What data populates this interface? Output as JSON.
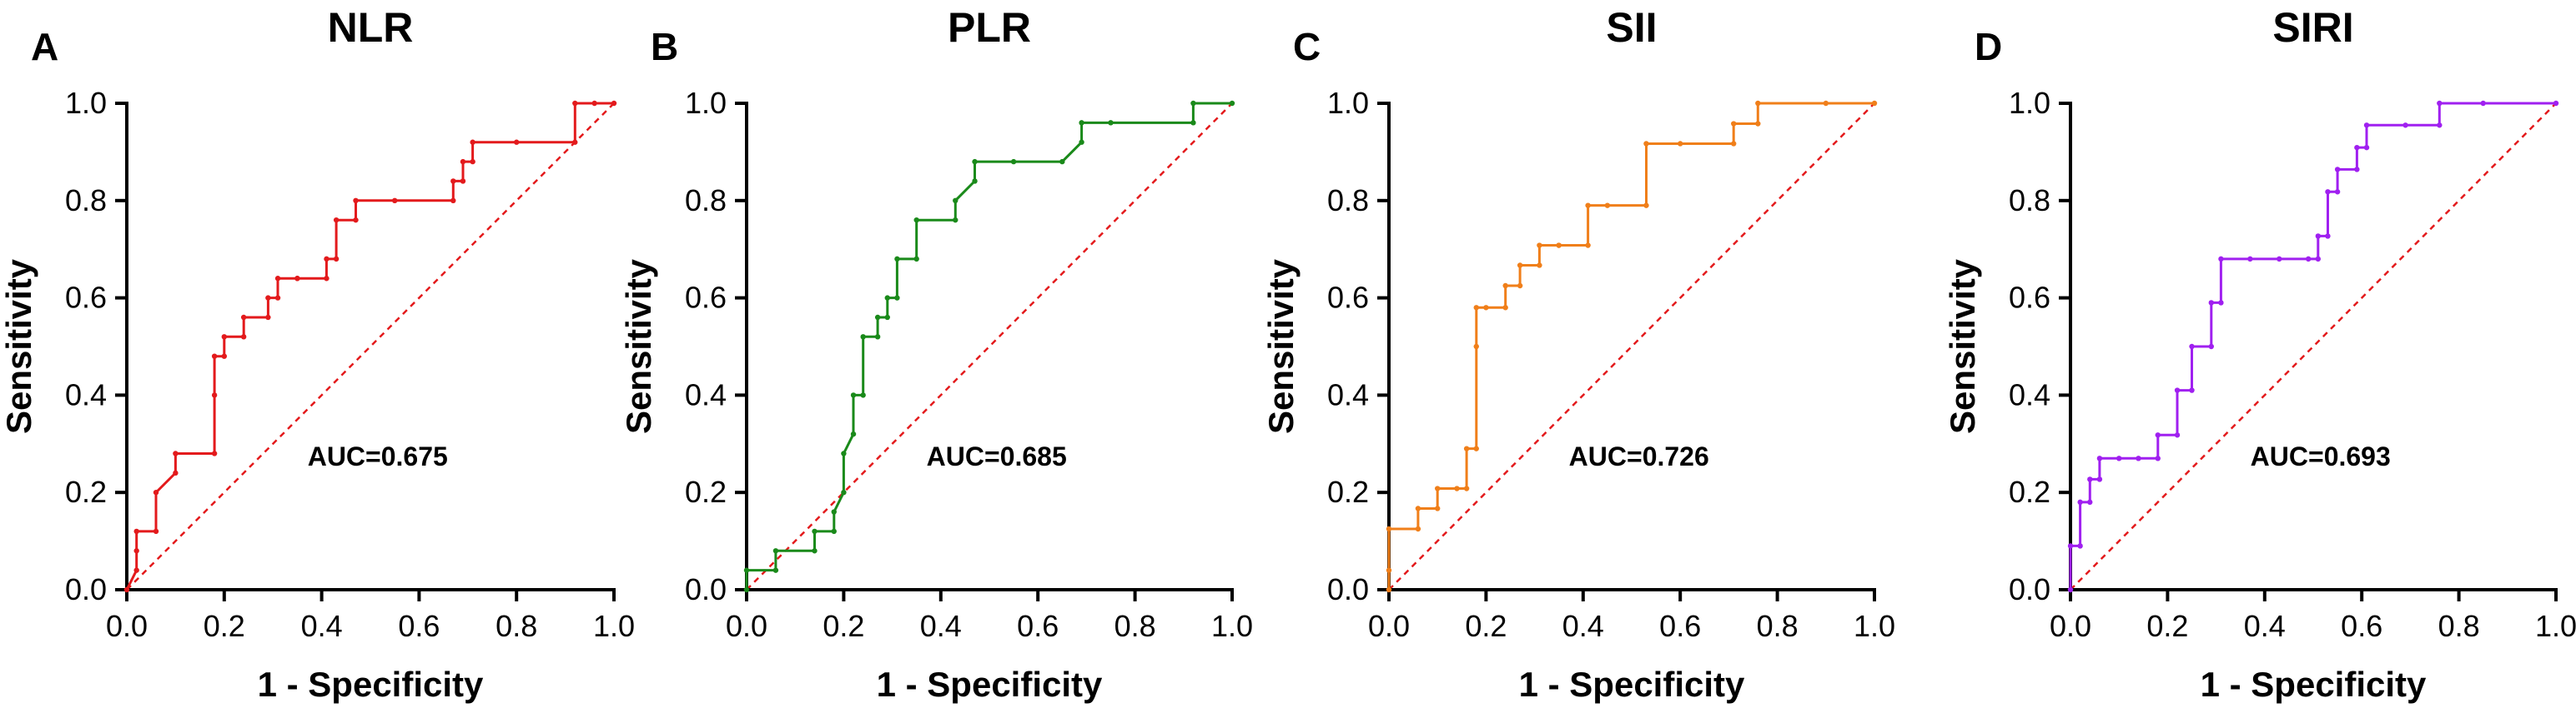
{
  "chart_data": [
    {
      "type": "line",
      "panel": "A",
      "title": "NLR",
      "xlabel": "1 - Specificity",
      "ylabel": "Sensitivity",
      "xlim": [
        0,
        1
      ],
      "ylim": [
        0,
        1
      ],
      "xticks": [
        "0.0",
        "0.2",
        "0.4",
        "0.6",
        "0.8",
        "1.0"
      ],
      "yticks": [
        "0.0",
        "0.2",
        "0.4",
        "0.6",
        "0.8",
        "1.0"
      ],
      "annotation": "AUC=0.675",
      "color": "#e31a1c",
      "reference_line": true,
      "series": [
        {
          "name": "NLR",
          "x": [
            0,
            0.02,
            0.02,
            0.02,
            0.06,
            0.06,
            0.1,
            0.1,
            0.18,
            0.18,
            0.18,
            0.2,
            0.2,
            0.24,
            0.24,
            0.29,
            0.29,
            0.31,
            0.31,
            0.35,
            0.35,
            0.41,
            0.41,
            0.43,
            0.43,
            0.47,
            0.47,
            0.55,
            0.67,
            0.67,
            0.69,
            0.69,
            0.71,
            0.71,
            0.8,
            0.92,
            0.92,
            0.96,
            1.0
          ],
          "y": [
            0,
            0.04,
            0.08,
            0.12,
            0.12,
            0.2,
            0.24,
            0.28,
            0.28,
            0.4,
            0.48,
            0.48,
            0.52,
            0.52,
            0.56,
            0.56,
            0.6,
            0.6,
            0.64,
            0.64,
            0.64,
            0.64,
            0.68,
            0.68,
            0.76,
            0.76,
            0.8,
            0.8,
            0.8,
            0.84,
            0.84,
            0.88,
            0.88,
            0.92,
            0.92,
            0.92,
            1.0,
            1.0,
            1.0
          ]
        }
      ]
    },
    {
      "type": "line",
      "panel": "B",
      "title": "PLR",
      "xlabel": "1 - Specificity",
      "ylabel": "Sensitivity",
      "xlim": [
        0,
        1
      ],
      "ylim": [
        0,
        1
      ],
      "xticks": [
        "0.0",
        "0.2",
        "0.4",
        "0.6",
        "0.8",
        "1.0"
      ],
      "yticks": [
        "0.0",
        "0.2",
        "0.4",
        "0.6",
        "0.8",
        "1.0"
      ],
      "annotation": "AUC=0.685",
      "color": "#1a8a1a",
      "reference_line": true,
      "series": [
        {
          "name": "PLR",
          "x": [
            0,
            0.0,
            0.06,
            0.06,
            0.14,
            0.14,
            0.18,
            0.18,
            0.2,
            0.2,
            0.22,
            0.22,
            0.24,
            0.24,
            0.27,
            0.27,
            0.29,
            0.29,
            0.31,
            0.31,
            0.35,
            0.35,
            0.43,
            0.43,
            0.47,
            0.47,
            0.55,
            0.65,
            0.69,
            0.69,
            0.75,
            0.92,
            0.92,
            1.0
          ],
          "y": [
            0,
            0.04,
            0.04,
            0.08,
            0.08,
            0.12,
            0.12,
            0.16,
            0.2,
            0.28,
            0.32,
            0.4,
            0.4,
            0.52,
            0.52,
            0.56,
            0.56,
            0.6,
            0.6,
            0.68,
            0.68,
            0.76,
            0.76,
            0.8,
            0.84,
            0.88,
            0.88,
            0.88,
            0.92,
            0.96,
            0.96,
            0.96,
            1.0,
            1.0
          ]
        }
      ]
    },
    {
      "type": "line",
      "panel": "C",
      "title": "SII",
      "xlabel": "1 - Specificity",
      "ylabel": "Sensitivity",
      "xlim": [
        0,
        1
      ],
      "ylim": [
        0,
        1
      ],
      "xticks": [
        "0.0",
        "0.2",
        "0.4",
        "0.6",
        "0.8",
        "1.0"
      ],
      "yticks": [
        "0.0",
        "0.2",
        "0.4",
        "0.6",
        "0.8",
        "1.0"
      ],
      "annotation": "AUC=0.726",
      "color": "#f07f1a",
      "reference_line": true,
      "series": [
        {
          "name": "SII",
          "x": [
            0,
            0.0,
            0.0,
            0.06,
            0.06,
            0.1,
            0.1,
            0.14,
            0.16,
            0.16,
            0.18,
            0.18,
            0.18,
            0.2,
            0.24,
            0.24,
            0.27,
            0.27,
            0.31,
            0.31,
            0.35,
            0.35,
            0.41,
            0.41,
            0.45,
            0.53,
            0.53,
            0.6,
            0.71,
            0.71,
            0.76,
            0.76,
            0.9,
            1.0
          ],
          "y": [
            0,
            0.04,
            0.125,
            0.125,
            0.167,
            0.167,
            0.208,
            0.208,
            0.208,
            0.29,
            0.29,
            0.5,
            0.58,
            0.58,
            0.58,
            0.625,
            0.625,
            0.667,
            0.667,
            0.708,
            0.708,
            0.708,
            0.708,
            0.79,
            0.79,
            0.79,
            0.917,
            0.917,
            0.917,
            0.958,
            0.958,
            1.0,
            1.0,
            1.0
          ]
        }
      ]
    },
    {
      "type": "line",
      "panel": "D",
      "title": "SIRI",
      "xlabel": "1 - Specificity",
      "ylabel": "Sensitivity",
      "xlim": [
        0,
        1
      ],
      "ylim": [
        0,
        1
      ],
      "xticks": [
        "0.0",
        "0.2",
        "0.4",
        "0.6",
        "0.8",
        "1.0"
      ],
      "yticks": [
        "0.0",
        "0.2",
        "0.4",
        "0.6",
        "0.8",
        "1.0"
      ],
      "annotation": "AUC=0.693",
      "color": "#a020f0",
      "reference_line": true,
      "series": [
        {
          "name": "SIRI",
          "x": [
            0,
            0.0,
            0.02,
            0.02,
            0.04,
            0.04,
            0.06,
            0.06,
            0.1,
            0.14,
            0.18,
            0.18,
            0.22,
            0.22,
            0.25,
            0.25,
            0.29,
            0.29,
            0.31,
            0.31,
            0.37,
            0.43,
            0.49,
            0.51,
            0.51,
            0.53,
            0.53,
            0.55,
            0.55,
            0.59,
            0.59,
            0.61,
            0.61,
            0.69,
            0.76,
            0.76,
            0.85,
            1.0
          ],
          "y": [
            0,
            0.09,
            0.09,
            0.18,
            0.18,
            0.227,
            0.227,
            0.27,
            0.27,
            0.27,
            0.27,
            0.318,
            0.318,
            0.41,
            0.41,
            0.5,
            0.5,
            0.59,
            0.59,
            0.68,
            0.68,
            0.68,
            0.68,
            0.68,
            0.727,
            0.727,
            0.818,
            0.818,
            0.864,
            0.864,
            0.909,
            0.909,
            0.955,
            0.955,
            0.955,
            1.0,
            1.0,
            1.0
          ]
        }
      ]
    }
  ]
}
